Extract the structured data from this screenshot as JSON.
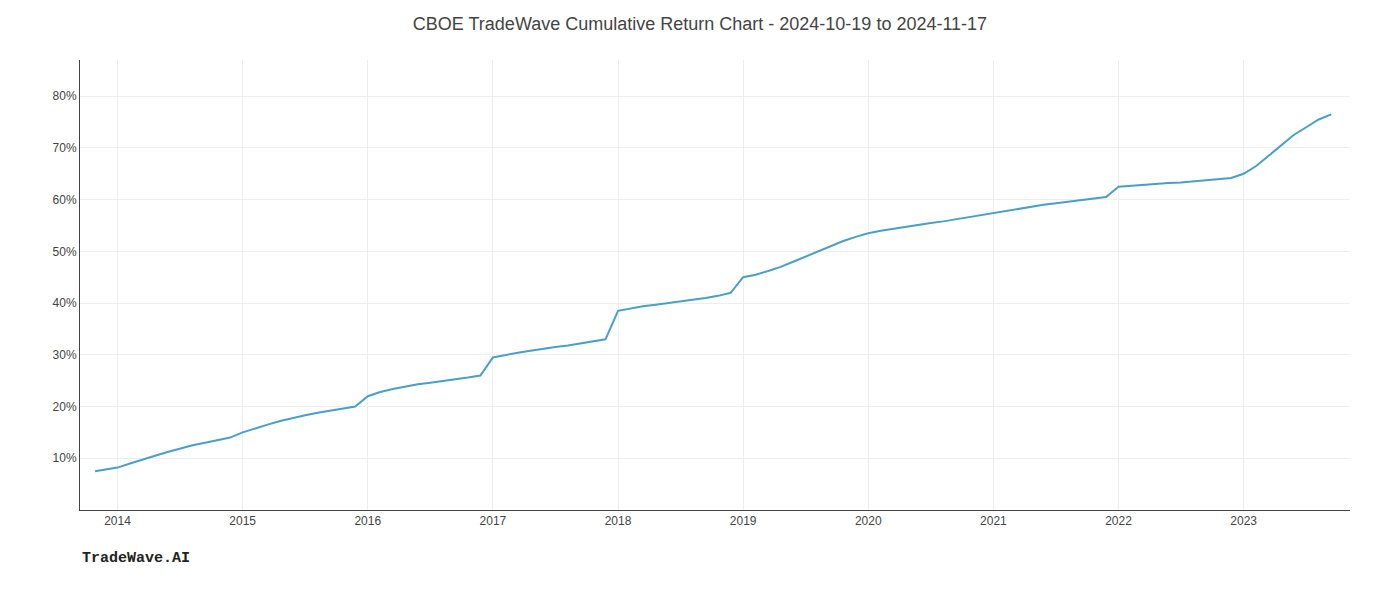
{
  "chart_data": {
    "type": "line",
    "title": "CBOE TradeWave Cumulative Return Chart - 2024-10-19 to 2024-11-17",
    "annotations": [
      {
        "text": "TradeWave.AI"
      }
    ],
    "color": "#4a9fc8",
    "x": [
      2013.82,
      2014.0,
      2014.1,
      2014.2,
      2014.3,
      2014.4,
      2014.5,
      2014.6,
      2014.7,
      2014.8,
      2014.9,
      2015.0,
      2015.1,
      2015.2,
      2015.3,
      2015.4,
      2015.5,
      2015.6,
      2015.7,
      2015.8,
      2015.9,
      2016.0,
      2016.1,
      2016.2,
      2016.3,
      2016.4,
      2016.5,
      2016.6,
      2016.7,
      2016.8,
      2016.9,
      2017.0,
      2017.1,
      2017.2,
      2017.3,
      2017.4,
      2017.5,
      2017.6,
      2017.7,
      2017.8,
      2017.9,
      2018.0,
      2018.1,
      2018.2,
      2018.3,
      2018.4,
      2018.5,
      2018.6,
      2018.7,
      2018.8,
      2018.9,
      2019.0,
      2019.1,
      2019.2,
      2019.3,
      2019.4,
      2019.5,
      2019.6,
      2019.7,
      2019.8,
      2019.9,
      2020.0,
      2020.1,
      2020.2,
      2020.3,
      2020.4,
      2020.5,
      2020.6,
      2020.7,
      2020.8,
      2020.9,
      2021.0,
      2021.1,
      2021.2,
      2021.3,
      2021.4,
      2021.5,
      2021.6,
      2021.7,
      2021.8,
      2021.9,
      2022.0,
      2022.1,
      2022.2,
      2022.3,
      2022.4,
      2022.5,
      2022.6,
      2022.7,
      2022.8,
      2022.9,
      2023.0,
      2023.1,
      2023.2,
      2023.3,
      2023.4,
      2023.5,
      2023.6,
      2023.7
    ],
    "values": [
      7.5,
      8.2,
      9.0,
      9.8,
      10.5,
      11.2,
      11.9,
      12.5,
      13.0,
      13.5,
      14.0,
      15.0,
      15.8,
      16.5,
      17.2,
      17.8,
      18.3,
      18.8,
      19.2,
      19.6,
      20.0,
      22.0,
      22.8,
      23.4,
      23.9,
      24.3,
      24.6,
      25.0,
      25.3,
      25.6,
      26.0,
      29.5,
      30.0,
      30.4,
      30.8,
      31.2,
      31.5,
      31.8,
      32.2,
      32.6,
      33.0,
      38.5,
      39.0,
      39.4,
      39.7,
      40.0,
      40.3,
      40.6,
      41.0,
      41.4,
      42.0,
      45.0,
      45.5,
      46.2,
      47.0,
      48.0,
      49.0,
      50.0,
      51.0,
      52.0,
      52.8,
      53.5,
      54.0,
      54.4,
      54.8,
      55.2,
      55.5,
      55.8,
      56.2,
      56.6,
      57.0,
      57.5,
      57.9,
      58.3,
      58.7,
      59.0,
      59.3,
      59.6,
      59.9,
      60.2,
      60.5,
      62.5,
      62.7,
      62.9,
      63.1,
      63.2,
      63.3,
      63.5,
      63.7,
      63.9,
      64.2,
      65.0,
      66.5,
      68.5,
      70.5,
      72.5,
      74.0,
      75.5,
      76.5
    ],
    "xlim": [
      2013.7,
      2023.85
    ],
    "xticks": [
      2014,
      2015,
      2016,
      2017,
      2018,
      2019,
      2020,
      2021,
      2022,
      2023
    ],
    "ylim": [
      0,
      87
    ],
    "yticks": [
      {
        "value": 10,
        "label": "10%"
      },
      {
        "value": 20,
        "label": "20%"
      },
      {
        "value": 30,
        "label": "30%"
      },
      {
        "value": 40,
        "label": "40%"
      },
      {
        "value": 50,
        "label": "50%"
      },
      {
        "value": 60,
        "label": "60%"
      },
      {
        "value": 70,
        "label": "70%"
      },
      {
        "value": 80,
        "label": "80%"
      }
    ],
    "grid": true
  }
}
